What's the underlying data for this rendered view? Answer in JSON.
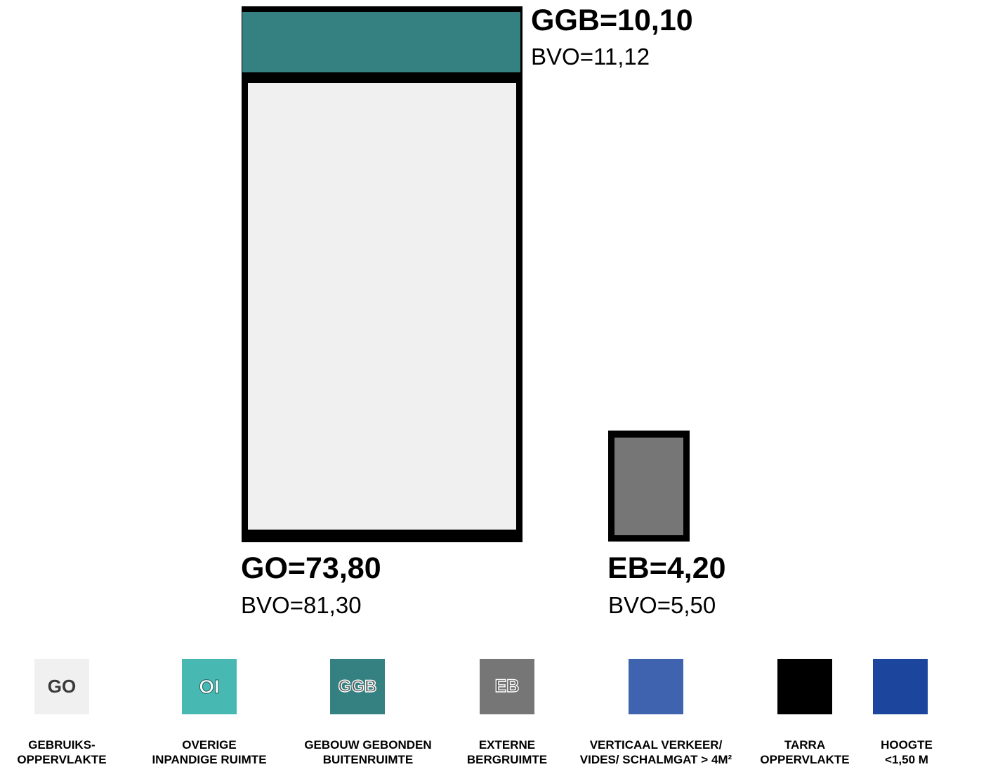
{
  "colors": {
    "go": "#f0f0f0",
    "oi": "#47b8b2",
    "ggb": "#358080",
    "eb": "#767676",
    "verticaal": "#3f63ae",
    "tarra": "#000000",
    "hoogte": "#1c469e"
  },
  "blocks": {
    "ggb": {
      "label": "GGB=10,10",
      "bvo": "BVO=11,12"
    },
    "go": {
      "label": "GO=73,80",
      "bvo": "BVO=81,30"
    },
    "eb": {
      "label": "EB=4,20",
      "bvo": "BVO=5,50"
    }
  },
  "legend": [
    {
      "key": "go",
      "swatch_text": "GO",
      "line1": "GEBRUIKS-",
      "line2": "OPPERVLAKTE"
    },
    {
      "key": "oi",
      "swatch_text": "OI",
      "line1": "OVERIGE",
      "line2": "INPANDIGE RUIMTE"
    },
    {
      "key": "ggb",
      "swatch_text": "GGB",
      "line1": "GEBOUW GEBONDEN",
      "line2": "BUITENRUIMTE"
    },
    {
      "key": "eb",
      "swatch_text": "EB",
      "line1": "EXTERNE",
      "line2": "BERGRUIMTE"
    },
    {
      "key": "verticaal",
      "swatch_text": "",
      "line1": "VERTICAAL VERKEER/",
      "line2": "VIDES/ SCHALMGAT > 4M²"
    },
    {
      "key": "tarra",
      "swatch_text": "",
      "line1": "TARRA",
      "line2": "OPPERVLAKTE"
    },
    {
      "key": "hoogte",
      "swatch_text": "",
      "line1": "HOOGTE",
      "line2": "<1,50 M"
    }
  ]
}
